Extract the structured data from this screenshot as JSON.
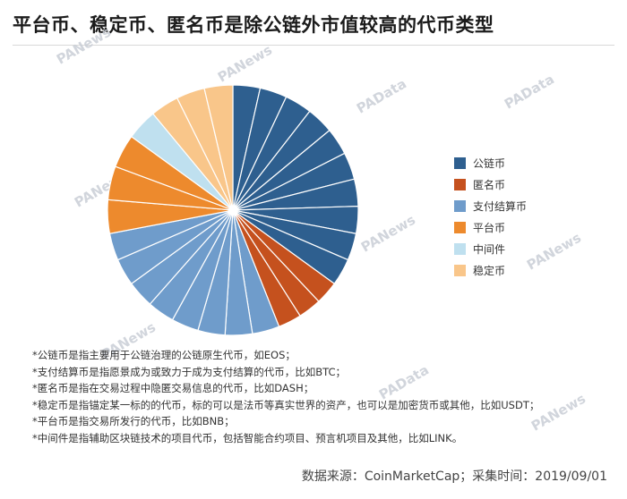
{
  "header": {
    "title": "平台币、稳定币、匿名币是除公链外市值较高的代币类型"
  },
  "watermark": {
    "text": "PANews",
    "alt_text": "PAData"
  },
  "chart_data": {
    "type": "pie",
    "title": "平台币、稳定币、匿名币是除公链外市值较高的代币类型",
    "legend_position": "right",
    "slice_divider_color": "#ffffff",
    "categories": [
      "公链币",
      "匿名币",
      "支付结算币",
      "平台币",
      "中间件",
      "稳定币"
    ],
    "colors": [
      "#2e5f8f",
      "#c5511e",
      "#6f9ccb",
      "#ed8a2d",
      "#bfe0ef",
      "#f9c68a"
    ],
    "series": [
      {
        "category": "公链币",
        "segments": 10,
        "value": 35
      },
      {
        "category": "匿名币",
        "segments": 3,
        "value": 9
      },
      {
        "category": "支付结算币",
        "segments": 8,
        "value": 28
      },
      {
        "category": "平台币",
        "segments": 3,
        "value": 13
      },
      {
        "category": "中间件",
        "segments": 1,
        "value": 4
      },
      {
        "category": "稳定币",
        "segments": 3,
        "value": 11
      }
    ]
  },
  "notes": [
    "*公链币是指主要用于公链治理的公链原生代币，如EOS；",
    "*支付结算币是指愿景成为或致力于成为支付结算的代币，比如BTC；",
    "*匿名币是指在交易过程中隐匿交易信息的代币，比如DASH；",
    "*稳定币是指锚定某一标的的代币，标的可以是法币等真实世界的资产，也可以是加密货币或其他，比如USDT；",
    "*平台币是指交易所发行的代币，比如BNB；",
    "*中间件是指辅助区块链技术的项目代币，包括智能合约项目、预言机项目及其他，比如LINK。"
  ],
  "footer": {
    "source": "数据来源：CoinMarketCap；采集时间：2019/09/01"
  }
}
